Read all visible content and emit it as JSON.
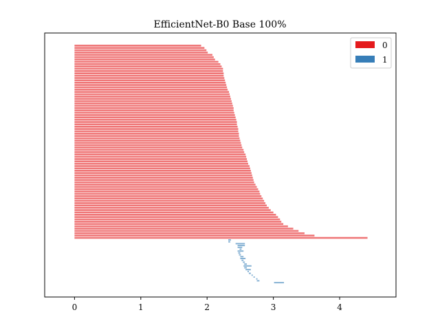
{
  "chart_data": {
    "type": "bar",
    "orientation": "horizontal",
    "title": "EfficientNet-B0 Base 100%",
    "xlabel": "",
    "ylabel": "",
    "xlim": [
      -0.45,
      4.85
    ],
    "xticks": [
      0,
      1,
      2,
      3,
      4
    ],
    "xtick_labels": [
      "0",
      "1",
      "2",
      "3",
      "4"
    ],
    "grid": false,
    "legend_position": "top-right",
    "colors": {
      "0": "#e41a1c",
      "1": "#377eb8"
    },
    "series": [
      {
        "name": "0",
        "color": "#e41a1c",
        "alpha": 0.6,
        "values": [
          1.91,
          1.96,
          1.99,
          2.01,
          2.08,
          2.1,
          2.12,
          2.17,
          2.2,
          2.22,
          2.24,
          2.24,
          2.25,
          2.25,
          2.26,
          2.27,
          2.28,
          2.29,
          2.3,
          2.31,
          2.33,
          2.34,
          2.35,
          2.36,
          2.37,
          2.38,
          2.39,
          2.4,
          2.4,
          2.41,
          2.42,
          2.43,
          2.44,
          2.45,
          2.45,
          2.46,
          2.47,
          2.47,
          2.48,
          2.48,
          2.49,
          2.5,
          2.51,
          2.52,
          2.53,
          2.55,
          2.56,
          2.58,
          2.59,
          2.6,
          2.61,
          2.62,
          2.64,
          2.65,
          2.66,
          2.67,
          2.68,
          2.69,
          2.7,
          2.71,
          2.73,
          2.75,
          2.77,
          2.79,
          2.8,
          2.82,
          2.84,
          2.86,
          2.88,
          2.9,
          2.93,
          2.96,
          3.0,
          3.04,
          3.07,
          3.1,
          3.12,
          3.15,
          3.22,
          3.3,
          3.38,
          3.47,
          3.62,
          4.42
        ]
      },
      {
        "name": "1",
        "color": "#377eb8",
        "alpha": 0.6,
        "segments": [
          [
            2.32,
            2.36
          ],
          [
            2.32,
            2.35
          ],
          [
            2.43,
            2.57
          ],
          [
            2.46,
            2.57
          ],
          [
            2.46,
            2.53
          ],
          [
            2.49,
            2.52
          ],
          [
            2.46,
            2.55
          ],
          [
            2.47,
            2.5
          ],
          [
            2.48,
            2.51
          ],
          [
            2.5,
            2.55
          ],
          [
            2.5,
            2.58
          ],
          [
            2.52,
            2.55
          ],
          [
            2.54,
            2.57
          ],
          [
            2.56,
            2.6
          ],
          [
            2.55,
            2.67
          ],
          [
            2.56,
            2.6
          ],
          [
            2.58,
            2.66
          ],
          [
            2.61,
            2.63
          ],
          [
            2.63,
            2.66
          ],
          [
            2.67,
            2.69
          ],
          [
            2.7,
            2.72
          ],
          [
            2.74,
            2.76
          ],
          [
            2.75,
            2.79
          ],
          [
            3.01,
            3.16
          ]
        ]
      }
    ]
  }
}
